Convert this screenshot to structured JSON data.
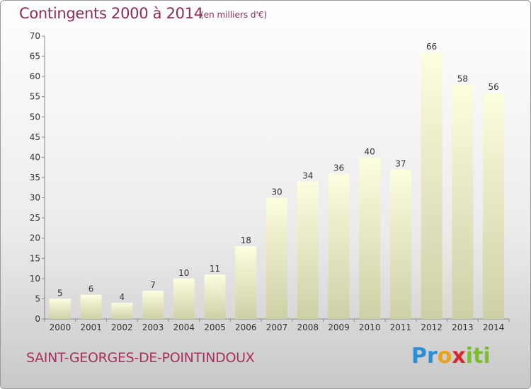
{
  "title": "Contingents 2000 à 2014",
  "unit_note": "(en milliers d'€)",
  "commune": "SAINT-GEORGES-DE-POINTINDOUX",
  "logo": {
    "text": "Proxiti",
    "colors": [
      "#2a8fd6",
      "#e8a418",
      "#d8262e",
      "#7bbf2a"
    ]
  },
  "chart_data": {
    "type": "bar",
    "categories": [
      "2000",
      "2001",
      "2002",
      "2003",
      "2004",
      "2005",
      "2006",
      "2007",
      "2008",
      "2009",
      "2010",
      "2011",
      "2012",
      "2013",
      "2014"
    ],
    "values": [
      5,
      6,
      4,
      7,
      10,
      11,
      18,
      30,
      34,
      36,
      40,
      37,
      66,
      58,
      56
    ],
    "data_labels": [
      "5",
      "6",
      "4",
      "7",
      "10",
      "11",
      "18",
      "30",
      "34",
      "36",
      "40",
      "37",
      "66",
      "58",
      "56"
    ],
    "title": "Contingents 2000 à 2014",
    "xlabel": "",
    "ylabel": "",
    "ylim": [
      0,
      70
    ],
    "yticks": [
      0,
      5,
      10,
      15,
      20,
      25,
      30,
      35,
      40,
      45,
      50,
      55,
      60,
      65,
      70
    ],
    "grid": false,
    "legend": "none",
    "bar_color_top": "#fdfde0",
    "bar_color_bottom": "#cfcfa6"
  }
}
